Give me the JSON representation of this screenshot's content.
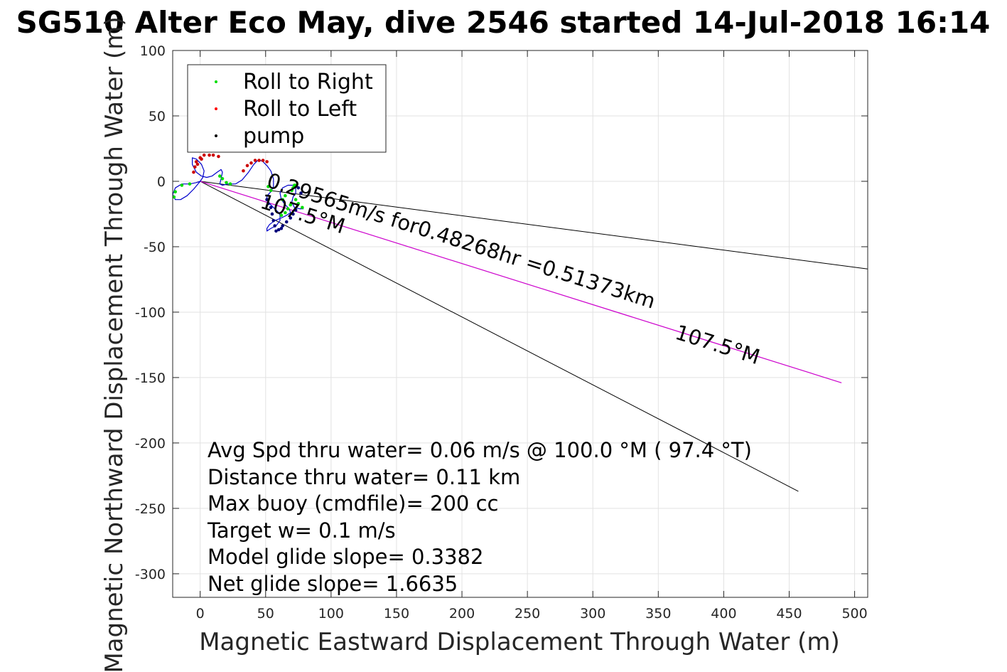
{
  "chart_data": {
    "type": "line",
    "title": "SG510 Alter Eco May, dive 2546 started 14-Jul-2018 16:14",
    "xlabel": "Magnetic Eastward Displacement Through Water (m)",
    "ylabel": "Magnetic Northward Displacement Through Water (m)",
    "xlim": [
      -21,
      510
    ],
    "ylim": [
      -318,
      100
    ],
    "xticks": [
      0,
      50,
      100,
      150,
      200,
      250,
      300,
      350,
      400,
      450,
      500
    ],
    "yticks": [
      100,
      50,
      0,
      -50,
      -100,
      -150,
      -200,
      -250,
      -300
    ],
    "grid": true,
    "legend_position": "top-left",
    "legend": [
      {
        "label": "Roll to Right",
        "color": "#00dd00"
      },
      {
        "label": "Roll to Left",
        "color": "#ff0000"
      },
      {
        "label": "pump",
        "color": "#000000"
      }
    ],
    "track": {
      "color": "#0000cc",
      "x": [
        0,
        -5,
        -10,
        -15,
        -19,
        -21,
        -19,
        -14,
        -8,
        -3,
        0,
        2,
        3,
        1,
        -3,
        -6,
        -6,
        -3,
        1,
        5,
        9,
        13,
        16,
        17,
        16,
        15,
        17,
        21,
        27,
        32,
        37,
        41,
        44,
        46,
        48,
        51,
        54,
        56,
        56,
        54,
        52,
        51,
        51,
        52,
        54,
        56,
        58,
        60,
        61,
        61,
        58,
        54,
        51,
        51,
        53,
        57,
        62,
        66,
        69,
        68,
        65,
        62,
        61,
        63,
        67,
        71,
        73,
        73,
        71,
        70,
        72,
        76,
        79
      ],
      "y": [
        0,
        -6,
        -11,
        -14,
        -14,
        -10,
        -5,
        -2,
        -2,
        -1,
        0,
        3,
        8,
        13,
        17,
        18,
        13,
        7,
        4,
        3,
        4,
        7,
        9,
        7,
        2,
        -2,
        -3,
        -2,
        -2,
        1,
        7,
        13,
        16,
        16,
        15,
        12,
        8,
        2,
        -4,
        -8,
        -10,
        -11,
        -13,
        -16,
        -18,
        -20,
        -22,
        -24,
        -26,
        -30,
        -34,
        -36,
        -38,
        -36,
        -33,
        -30,
        -28,
        -26,
        -24,
        -21,
        -18,
        -14,
        -9,
        -5,
        -3,
        -3,
        -5,
        -9,
        -12,
        -16,
        -20,
        -21,
        -21
      ]
    },
    "roll_right_points": {
      "color": "#00dd00",
      "x": [
        -8,
        -14,
        -19,
        -20,
        15,
        17,
        20,
        23,
        62,
        65,
        67,
        69,
        70,
        71,
        72,
        73,
        63,
        65,
        73,
        75,
        78,
        52,
        54
      ],
      "y": [
        -2,
        -3,
        -8,
        -12,
        4,
        2,
        -1,
        -2,
        -26,
        -24,
        -21,
        -18,
        -7,
        -5,
        -3,
        -3,
        -14,
        -11,
        -14,
        -17,
        -20,
        -4,
        -7
      ]
    },
    "roll_left_points": {
      "color": "#cc0000",
      "x": [
        -5,
        -4,
        -3,
        0,
        3,
        7,
        10,
        14,
        33,
        36,
        39,
        42,
        45,
        48,
        51,
        -2,
        1
      ],
      "y": [
        7,
        11,
        15,
        18,
        20,
        20,
        20,
        19,
        8,
        12,
        14,
        16,
        16,
        16,
        15,
        13,
        17
      ]
    },
    "pump_points": {
      "color": "#00007a",
      "x": [
        51,
        52,
        54,
        55,
        56,
        57,
        58,
        60,
        62,
        63,
        66,
        69,
        71,
        73,
        75,
        77
      ],
      "y": [
        -14,
        -17,
        -20,
        -25,
        -30,
        -34,
        -38,
        -37,
        -36,
        -34,
        -31,
        -28,
        -25,
        -22,
        -5,
        -9
      ]
    },
    "lines": [
      {
        "name": "bound_upper",
        "color": "#000000",
        "x": [
          0,
          510
        ],
        "y": [
          0,
          -67
        ]
      },
      {
        "name": "bound_lower",
        "color": "#000000",
        "x": [
          0,
          457
        ],
        "y": [
          0,
          -237
        ]
      },
      {
        "name": "avg_heading",
        "color": "#cc00cc",
        "x": [
          0,
          490
        ],
        "y": [
          0,
          -154
        ]
      }
    ],
    "annotations": [
      {
        "text": "0.29565m/s for0.48268hr =0.51373km",
        "x": 50,
        "y": -4,
        "angle": 17.5
      },
      {
        "text": "107.5°M",
        "x": 45,
        "y": -20,
        "angle": 17.5
      },
      {
        "text": "107.5°M",
        "x": 362,
        "y": -120,
        "angle": 17.5
      }
    ],
    "stats": [
      "Avg Spd thru water=  0.06 m/s @ 100.0 °M ( 97.4 °T)",
      "Distance thru water=  0.11 km",
      "Max buoy (cmdfile)= 200 cc",
      "Target w= 0.1 m/s",
      "Model glide slope= 0.3382",
      "Net glide slope= 1.6635"
    ]
  }
}
